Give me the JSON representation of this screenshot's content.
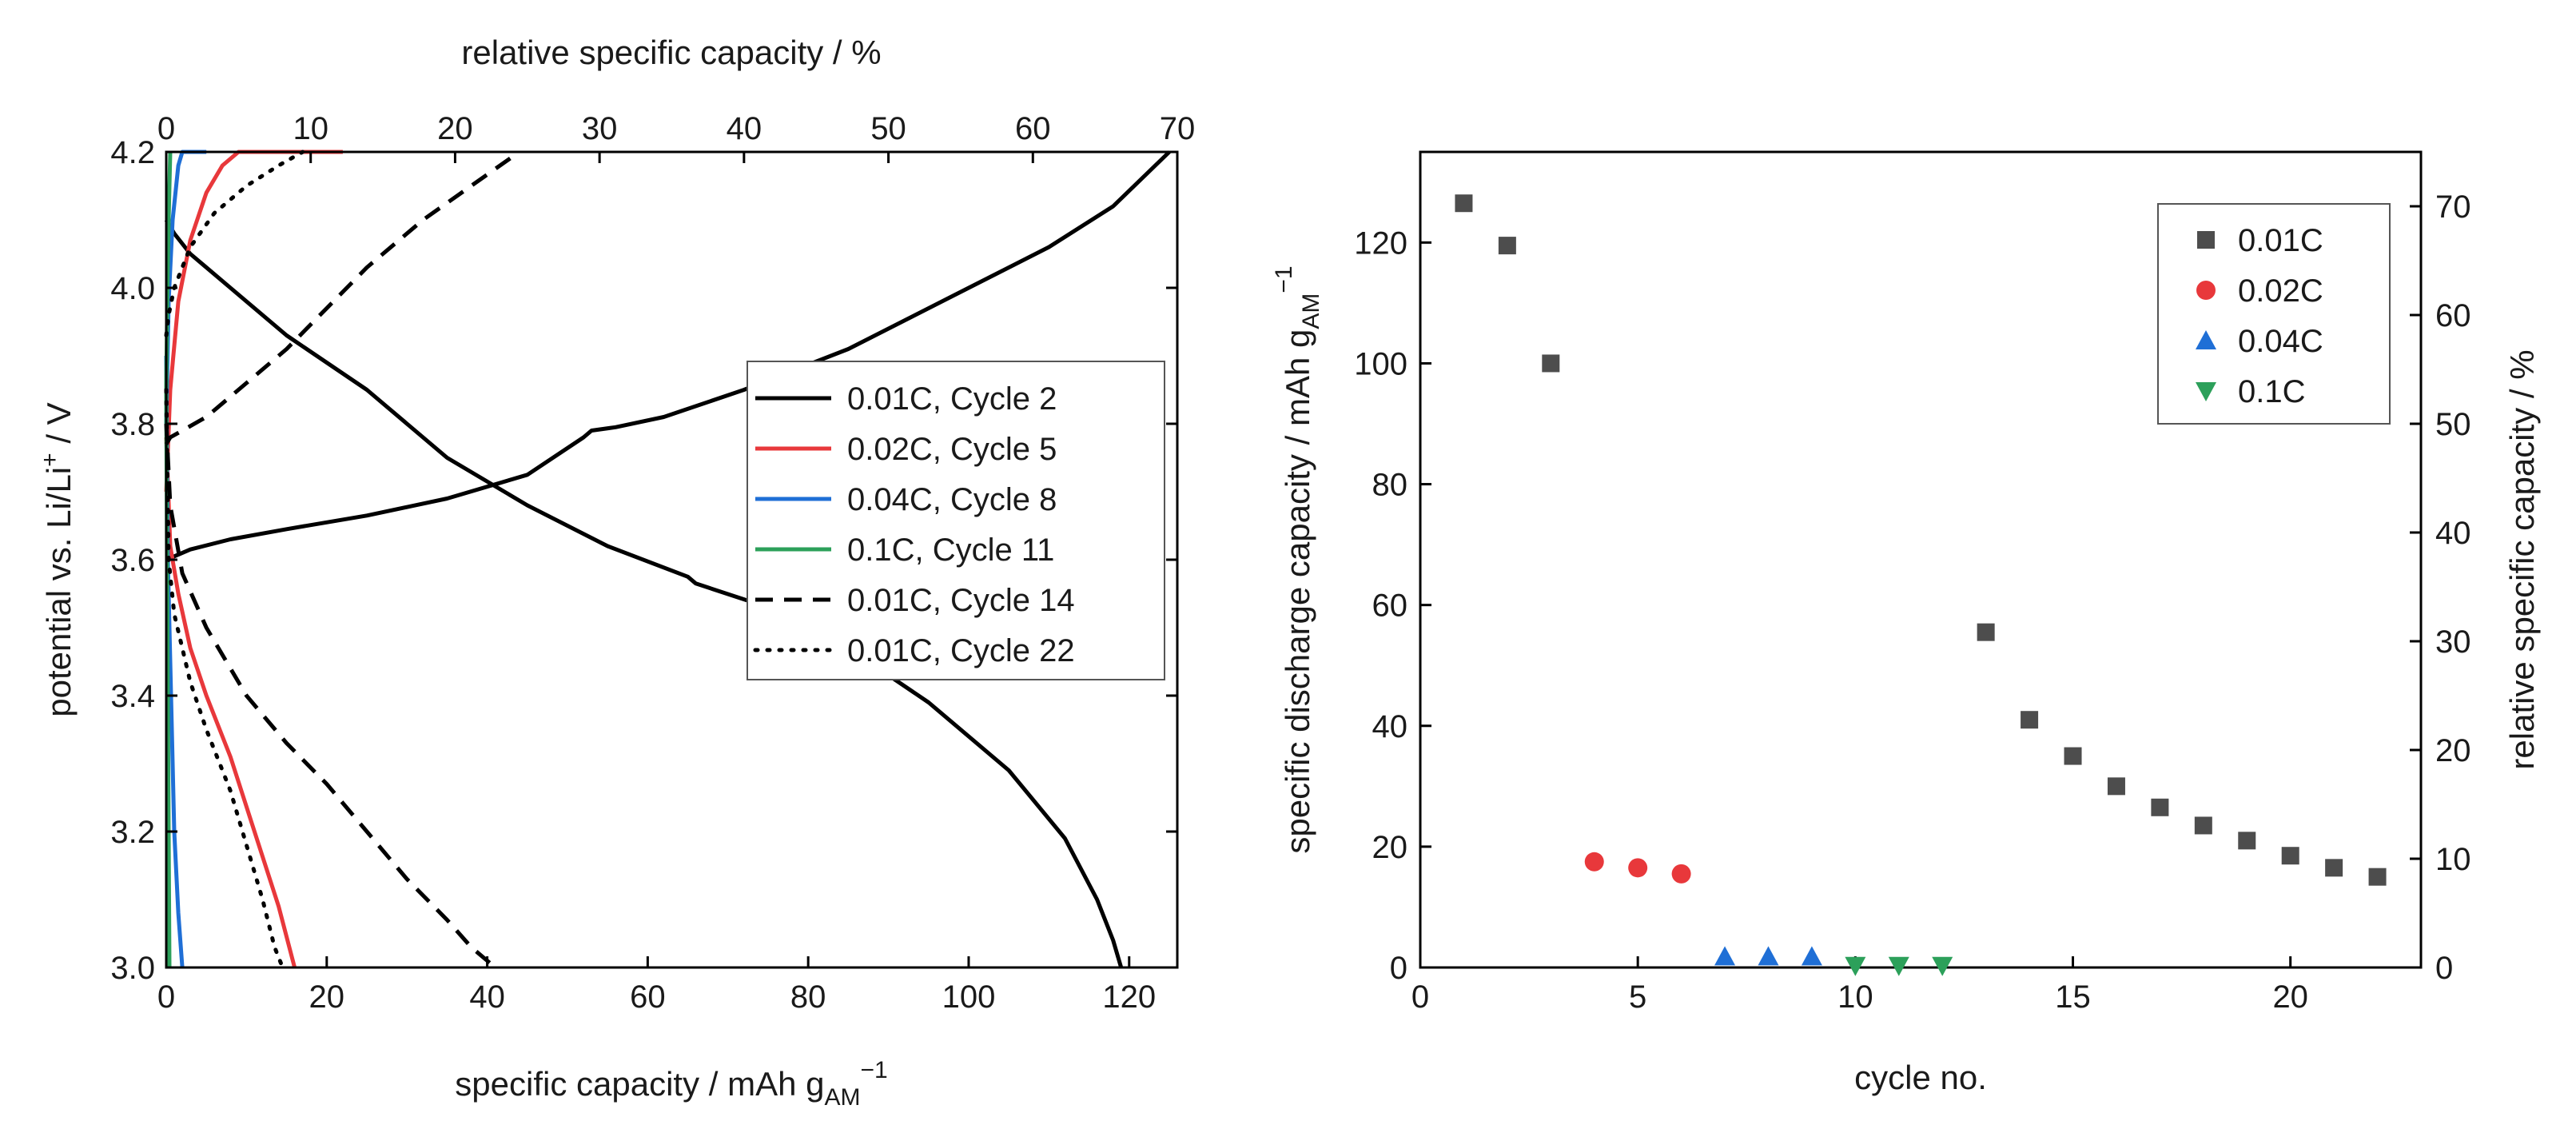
{
  "chart_data": [
    {
      "type": "line",
      "title": "",
      "xlabel": "specific capacity / mAh g",
      "xlabel_sub": "AM",
      "xlabel_sup": "−1",
      "ylabel": "potential vs. Li/Li",
      "ylabel_sup": "+",
      "ylabel_tail": " / V",
      "x2label": "relative specific capacity / %",
      "xlim": [
        0,
        126
      ],
      "ylim": [
        3.0,
        4.2
      ],
      "x2lim": [
        0,
        70
      ],
      "x_ticks": [
        0,
        20,
        40,
        60,
        80,
        100,
        120
      ],
      "y_ticks": [
        3.0,
        3.2,
        3.4,
        3.6,
        3.8,
        4.0,
        4.2
      ],
      "x2_ticks": [
        0,
        10,
        20,
        30,
        40,
        50,
        60,
        70
      ],
      "legend_position": "right",
      "series": [
        {
          "name": "0.01C, Cycle 2",
          "color": "#000000",
          "dash": "solid",
          "charge": [
            [
              0,
              3.6
            ],
            [
              1,
              3.605
            ],
            [
              3,
              3.615
            ],
            [
              8,
              3.63
            ],
            [
              15,
              3.645
            ],
            [
              25,
              3.665
            ],
            [
              35,
              3.69
            ],
            [
              45,
              3.725
            ],
            [
              52,
              3.78
            ],
            [
              53,
              3.79
            ],
            [
              56,
              3.795
            ],
            [
              62,
              3.81
            ],
            [
              72,
              3.85
            ],
            [
              85,
              3.91
            ],
            [
              100,
              4.0
            ],
            [
              110,
              4.06
            ],
            [
              118,
              4.12
            ],
            [
              125,
              4.2
            ]
          ],
          "discharge": [
            [
              0,
              4.1
            ],
            [
              1,
              4.08
            ],
            [
              3,
              4.05
            ],
            [
              8,
              4.0
            ],
            [
              15,
              3.93
            ],
            [
              25,
              3.85
            ],
            [
              35,
              3.75
            ],
            [
              45,
              3.68
            ],
            [
              55,
              3.62
            ],
            [
              65,
              3.575
            ],
            [
              66,
              3.565
            ],
            [
              75,
              3.53
            ],
            [
              85,
              3.47
            ],
            [
              95,
              3.39
            ],
            [
              105,
              3.29
            ],
            [
              112,
              3.19
            ],
            [
              116,
              3.1
            ],
            [
              118,
              3.04
            ],
            [
              119,
              3.0
            ]
          ]
        },
        {
          "name": "0.02C, Cycle 5",
          "color": "#e8383b",
          "dash": "solid",
          "charge": [
            [
              0,
              3.7
            ],
            [
              0.5,
              3.85
            ],
            [
              1.5,
              3.98
            ],
            [
              3,
              4.07
            ],
            [
              5,
              4.14
            ],
            [
              7,
              4.18
            ],
            [
              9,
              4.2
            ],
            [
              22,
              4.2
            ]
          ],
          "discharge": [
            [
              0,
              3.78
            ],
            [
              0.5,
              3.62
            ],
            [
              1.5,
              3.55
            ],
            [
              3,
              3.47
            ],
            [
              5,
              3.4
            ],
            [
              8,
              3.31
            ],
            [
              11,
              3.2
            ],
            [
              14,
              3.09
            ],
            [
              16,
              3.0
            ]
          ]
        },
        {
          "name": "0.04C, Cycle 8",
          "color": "#1f6fd6",
          "dash": "solid",
          "charge": [
            [
              0,
              3.8
            ],
            [
              0.3,
              3.98
            ],
            [
              0.8,
              4.1
            ],
            [
              1.5,
              4.18
            ],
            [
              2,
              4.2
            ],
            [
              5,
              4.2
            ]
          ],
          "discharge": [
            [
              0,
              3.9
            ],
            [
              0.2,
              3.6
            ],
            [
              0.6,
              3.4
            ],
            [
              1,
              3.2
            ],
            [
              1.5,
              3.08
            ],
            [
              2,
              3.0
            ]
          ]
        },
        {
          "name": "0.1C, Cycle 11",
          "color": "#2ca05a",
          "dash": "solid",
          "charge": [
            [
              0,
              3.85
            ],
            [
              0.15,
              4.0
            ],
            [
              0.3,
              4.1
            ],
            [
              0.5,
              4.2
            ]
          ],
          "discharge": [
            [
              0,
              3.85
            ],
            [
              0.1,
              3.6
            ],
            [
              0.25,
              3.3
            ],
            [
              0.4,
              3.0
            ]
          ]
        },
        {
          "name": "0.01C, Cycle 14",
          "color": "#000000",
          "dash": "22,14",
          "charge": [
            [
              0,
              3.77
            ],
            [
              0.5,
              3.78
            ],
            [
              2,
              3.79
            ],
            [
              5,
              3.81
            ],
            [
              10,
              3.86
            ],
            [
              15,
              3.91
            ],
            [
              20,
              3.97
            ],
            [
              25,
              4.03
            ],
            [
              32,
              4.1
            ],
            [
              38,
              4.15
            ],
            [
              44,
              4.2
            ]
          ],
          "discharge": [
            [
              0,
              3.8
            ],
            [
              0.5,
              3.68
            ],
            [
              2,
              3.58
            ],
            [
              5,
              3.5
            ],
            [
              10,
              3.4
            ],
            [
              15,
              3.33
            ],
            [
              20,
              3.27
            ],
            [
              25,
              3.2
            ],
            [
              30,
              3.13
            ],
            [
              35,
              3.07
            ],
            [
              38,
              3.03
            ],
            [
              41,
              3.0
            ]
          ]
        },
        {
          "name": "0.01C, Cycle 22",
          "color": "#000000",
          "dash": "3,12",
          "charge": [
            [
              0,
              3.93
            ],
            [
              0.3,
              3.96
            ],
            [
              1,
              4.0
            ],
            [
              3,
              4.06
            ],
            [
              6,
              4.11
            ],
            [
              10,
              4.15
            ],
            [
              14,
              4.18
            ],
            [
              17,
              4.2
            ]
          ],
          "discharge": [
            [
              0,
              3.85
            ],
            [
              0.3,
              3.6
            ],
            [
              1,
              3.52
            ],
            [
              3,
              3.42
            ],
            [
              5,
              3.35
            ],
            [
              8,
              3.26
            ],
            [
              10,
              3.18
            ],
            [
              12,
              3.1
            ],
            [
              13.5,
              3.03
            ],
            [
              14.5,
              3.0
            ]
          ]
        }
      ]
    },
    {
      "type": "scatter",
      "title": "",
      "xlabel": "cycle no.",
      "ylabel": "specific discharge capacity / mAh g",
      "ylabel_sub": "AM",
      "ylabel_sup": "−1",
      "y2label": "relative specific capacity / %",
      "xlim": [
        0,
        23
      ],
      "ylim": [
        0,
        135
      ],
      "y2lim": [
        0,
        75
      ],
      "x_ticks": [
        0,
        5,
        10,
        15,
        20
      ],
      "y_ticks": [
        0,
        20,
        40,
        60,
        80,
        100,
        120
      ],
      "y2_ticks": [
        0,
        10,
        20,
        30,
        40,
        50,
        60,
        70
      ],
      "legend_position": "top-right",
      "series": [
        {
          "name": "0.01C",
          "color": "#4d4d4d",
          "marker": "square",
          "points": [
            [
              1,
              126.5
            ],
            [
              2,
              119.5
            ],
            [
              3,
              100
            ],
            [
              13,
              55.5
            ],
            [
              14,
              41
            ],
            [
              15,
              35
            ],
            [
              16,
              30
            ],
            [
              17,
              26.5
            ],
            [
              18,
              23.5
            ],
            [
              19,
              21
            ],
            [
              20,
              18.5
            ],
            [
              21,
              16.5
            ],
            [
              22,
              15
            ]
          ]
        },
        {
          "name": "0.02C",
          "color": "#e8383b",
          "marker": "circle",
          "points": [
            [
              4,
              17.5
            ],
            [
              5,
              16.5
            ],
            [
              6,
              15.5
            ]
          ]
        },
        {
          "name": "0.04C",
          "color": "#1f6fd6",
          "marker": "triangle-up",
          "points": [
            [
              7,
              1.8
            ],
            [
              8,
              1.8
            ],
            [
              9,
              1.8
            ]
          ]
        },
        {
          "name": "0.1C",
          "color": "#2ca05a",
          "marker": "triangle-down",
          "points": [
            [
              10,
              0.3
            ],
            [
              11,
              0.3
            ],
            [
              12,
              0.3
            ]
          ]
        }
      ]
    }
  ]
}
